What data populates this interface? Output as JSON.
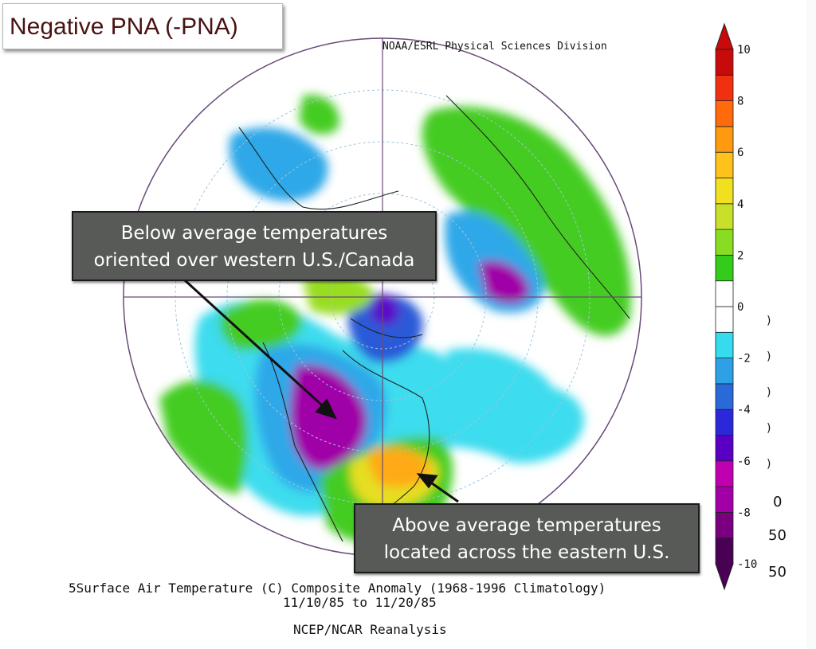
{
  "title": "Negative PNA (-PNA)",
  "credit": "NOAA/ESRL Physical Sciences Division",
  "callouts": {
    "west": {
      "line1": "Below average temperatures",
      "line2": "oriented over western U.S./Canada"
    },
    "east": {
      "line1": "Above average temperatures",
      "line2": "located across the eastern U.S."
    }
  },
  "caption": {
    "line1": "Surface Air Temperature (C) Composite Anomaly (1968-1996 Climatology)",
    "line1_prefix": "5",
    "line2": "11/10/85  to 11/20/85",
    "line3": "NCEP/NCAR Reanalysis"
  },
  "colorbar": {
    "min": -10,
    "max": 10,
    "tick_labels": [
      "10",
      "8",
      "6",
      "4",
      "2",
      "0",
      "-2",
      "-4",
      "-6",
      "-8",
      "-10"
    ],
    "colors": [
      "#4a0055",
      "#7a0080",
      "#a200a6",
      "#c000b0",
      "#5a00c4",
      "#2a28d8",
      "#2a6ad8",
      "#2ea0e6",
      "#35dcee",
      "#ffffff",
      "#ffffff",
      "#33cc1a",
      "#88dd22",
      "#c8e02a",
      "#f0e020",
      "#ffc21a",
      "#ff9a10",
      "#ff6a0a",
      "#f03010",
      "#c80a0a"
    ]
  },
  "anomaly_colors": {
    "cold_extreme": "#a000a8",
    "cold_strong": "#5a10c8",
    "cold_mid": "#2a5ad8",
    "cold_light": "#2ea8e8",
    "cold_faint": "#3ddcee",
    "warm_faint": "#44cc22",
    "warm_light": "#99dd22",
    "warm_mid": "#e6de22",
    "warm_strong": "#ffaa15",
    "warm_hot": "#ff7a0a"
  },
  "right_edge_fragments": [
    ")",
    ")",
    ")",
    ")",
    ")",
    "0",
    "50",
    "50"
  ]
}
